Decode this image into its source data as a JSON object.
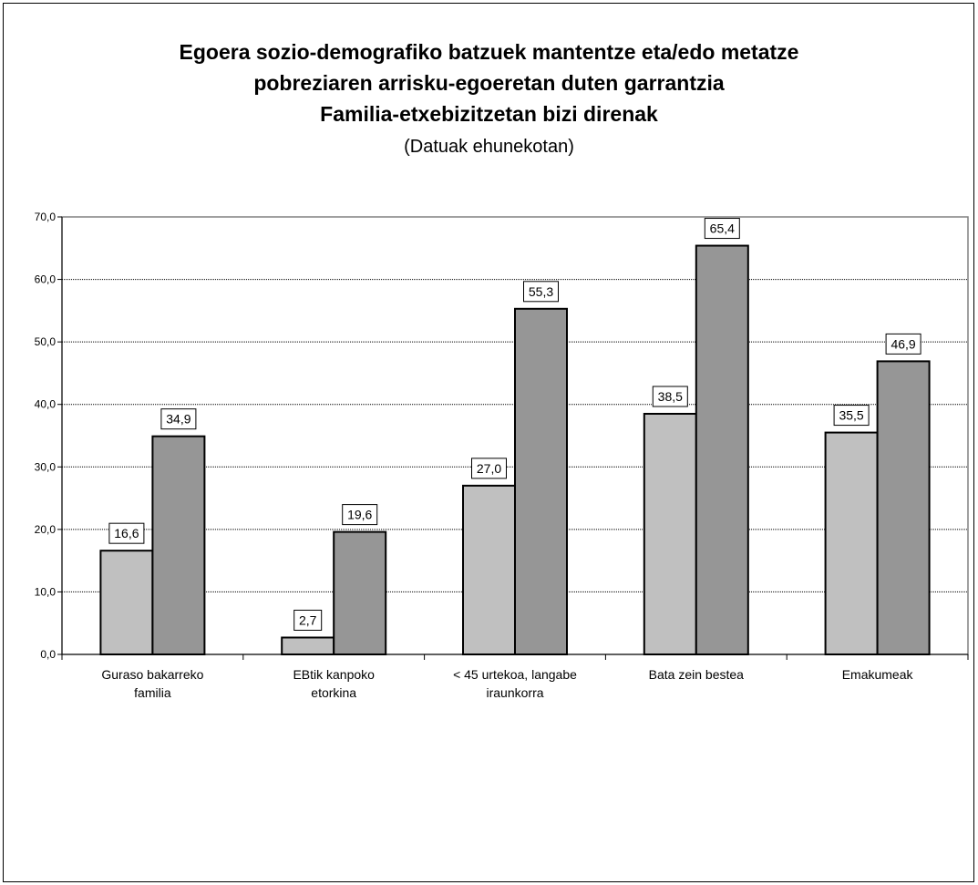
{
  "chart_data": {
    "type": "bar",
    "title": [
      "Egoera sozio-demografiko batzuek mantentze eta/edo metatze",
      "pobreziaren arrisku-egoeretan duten garrantzia",
      "Familia-etxebizitzetan bizi direnak"
    ],
    "subtitle": "(Datuak ehunekotan)",
    "categories": [
      [
        "Guraso bakarreko",
        "familia"
      ],
      [
        "EBtik kanpoko",
        "etorkina"
      ],
      [
        "< 45 urtekoa, langabe",
        "iraunkorra"
      ],
      [
        "Bata zein bestea"
      ],
      [
        "Emakumeak"
      ]
    ],
    "series": [
      {
        "values": [
          16.6,
          2.7,
          27.0,
          38.5,
          35.5
        ],
        "labels": [
          "16,6",
          "2,7",
          "27,0",
          "38,5",
          "35,5"
        ],
        "color": "#c0c0c0"
      },
      {
        "values": [
          34.9,
          19.6,
          55.3,
          65.4,
          46.9
        ],
        "labels": [
          "34,9",
          "19,6",
          "55,3",
          "65,4",
          "46,9"
        ],
        "color": "#969696"
      }
    ],
    "ylim": [
      0,
      70
    ],
    "yticks": [
      0,
      10,
      20,
      30,
      40,
      50,
      60,
      70
    ],
    "ytick_labels": [
      "0,0",
      "10,0",
      "20,0",
      "30,0",
      "40,0",
      "50,0",
      "60,0",
      "70,0"
    ],
    "grid": true,
    "legend": false,
    "xlabel": "",
    "ylabel": ""
  }
}
